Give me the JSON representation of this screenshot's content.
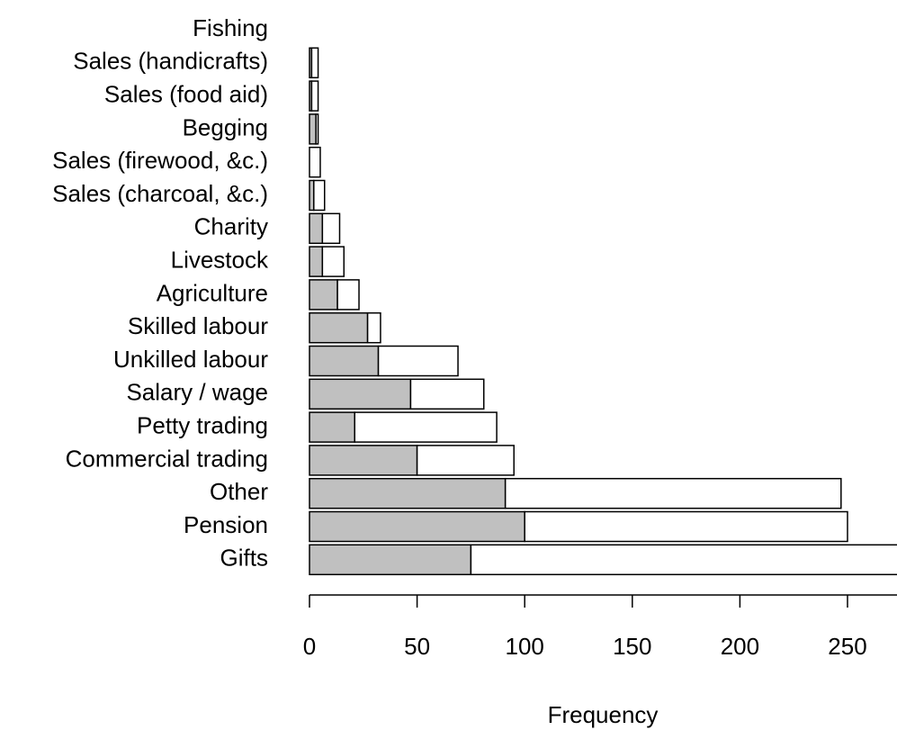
{
  "chart_data": {
    "type": "stacked-bar-horizontal",
    "categories": [
      "Fishing",
      "Sales (handicrafts)",
      "Sales (food aid)",
      "Begging",
      "Sales (firewood, &c.)",
      "Sales (charcoal, &c.)",
      "Charity",
      "Livestock",
      "Agriculture",
      "Skilled labour",
      "Unkilled labour",
      "Salary / wage",
      "Petty trading",
      "Commercial trading",
      "Other",
      "Pension",
      "Gifts"
    ],
    "series": [
      {
        "color": "#c0c0c0",
        "values": [
          0,
          1,
          1,
          3,
          0,
          2,
          6,
          6,
          13,
          27,
          32,
          47,
          21,
          50,
          91,
          100,
          75
        ]
      },
      {
        "color": "#ffffff",
        "values": [
          0,
          3,
          3,
          1,
          5,
          5,
          8,
          10,
          10,
          6,
          37,
          34,
          66,
          45,
          156,
          150,
          205
        ]
      }
    ],
    "xlabel": "Frequency",
    "xlim": [
      0,
      273
    ],
    "xticks": [
      0,
      50,
      100,
      150,
      200,
      250
    ]
  }
}
